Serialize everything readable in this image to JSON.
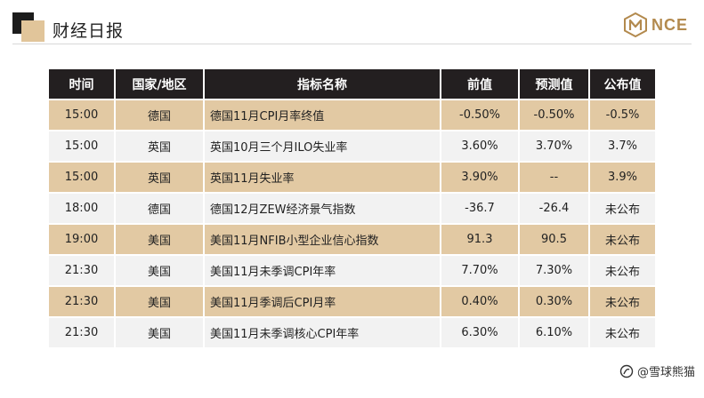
{
  "header": {
    "title": "财经日报",
    "logo_text": "NCE"
  },
  "table": {
    "columns": [
      "时间",
      "国家/地区",
      "指标名称",
      "前值",
      "预测值",
      "公布值"
    ],
    "rows": [
      {
        "time": "15:00",
        "country": "德国",
        "indicator": "德国11月CPI月率终值",
        "previous": "-0.50%",
        "forecast": "-0.50%",
        "actual": "-0.5%"
      },
      {
        "time": "15:00",
        "country": "英国",
        "indicator": "英国10月三个月ILO失业率",
        "previous": "3.60%",
        "forecast": "3.70%",
        "actual": "3.7%"
      },
      {
        "time": "15:00",
        "country": "英国",
        "indicator": "英国11月失业率",
        "previous": "3.90%",
        "forecast": "--",
        "actual": "3.9%"
      },
      {
        "time": "18:00",
        "country": "德国",
        "indicator": "德国12月ZEW经济景气指数",
        "previous": "-36.7",
        "forecast": "-26.4",
        "actual": "未公布"
      },
      {
        "time": "19:00",
        "country": "美国",
        "indicator": "美国11月NFIB小型企业信心指数",
        "previous": "91.3",
        "forecast": "90.5",
        "actual": "未公布"
      },
      {
        "time": "21:30",
        "country": "美国",
        "indicator": "美国11月未季调CPI年率",
        "previous": "7.70%",
        "forecast": "7.30%",
        "actual": "未公布"
      },
      {
        "time": "21:30",
        "country": "美国",
        "indicator": "美国11月季调后CPI月率",
        "previous": "0.40%",
        "forecast": "0.30%",
        "actual": "未公布"
      },
      {
        "time": "21:30",
        "country": "美国",
        "indicator": "美国11月未季调核心CPI年率",
        "previous": "6.30%",
        "forecast": "6.10%",
        "actual": "未公布"
      }
    ]
  },
  "watermark": {
    "text": "@雪球熊猫",
    "icon": "snowball-icon"
  },
  "colors": {
    "header_bg": "#231f20",
    "row_gold": "#e2c9a3",
    "row_gray": "#f2f2f2",
    "logo_gold": "#b38a4e"
  }
}
